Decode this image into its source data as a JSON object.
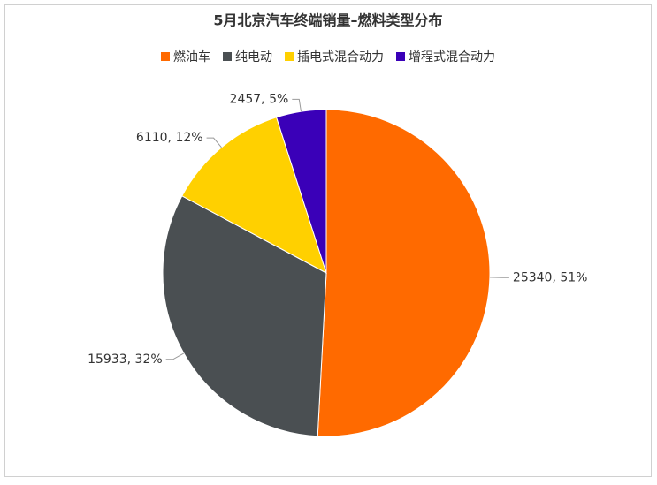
{
  "chart_data": {
    "type": "pie",
    "title": "5月北京汽车终端销量–燃料类型分布",
    "categories": [
      "燃油车",
      "纯电动",
      "插电式混合动力",
      "增程式混合动力"
    ],
    "values": [
      25340,
      15933,
      6110,
      2457
    ],
    "value_labels": [
      "25340, 51%",
      "15933, 32%",
      "6110, 12%",
      "2457, 5%"
    ],
    "colors": [
      "#ff6a00",
      "#4a4f52",
      "#ffd000",
      "#3a00b8"
    ],
    "legend": "top"
  }
}
